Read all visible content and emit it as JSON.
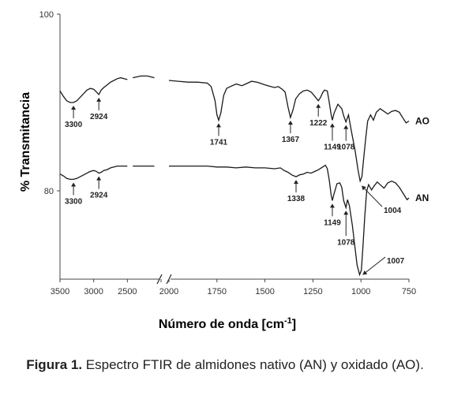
{
  "chart_data": {
    "type": "line",
    "caption_label": "Figura 1.",
    "caption_text": "Espectro FTIR de almidones nativo (AN) y oxidado (AO).",
    "xlabel": "Número de onda [cm",
    "xlabel_sup": "-1",
    "xlabel_end": "]",
    "ylabel": "% Transmitancia",
    "x_axis_break": true,
    "x_segments": [
      {
        "xlim": [
          3500,
          2000
        ]
      },
      {
        "xlim": [
          2000,
          750
        ]
      }
    ],
    "xticks": [
      "3500",
      "3000",
      "2500",
      "2000",
      "1750",
      "1500",
      "1250",
      "1000",
      "750"
    ],
    "yticks": [
      {
        "value": 100,
        "label": "100"
      },
      {
        "value": 80,
        "label": "80"
      }
    ],
    "ylim": [
      70,
      100
    ],
    "grid": false,
    "series": [
      {
        "name": "AO",
        "points": [
          [
            3500,
            91.3
          ],
          [
            3450,
            90.7
          ],
          [
            3400,
            90.2
          ],
          [
            3350,
            90.0
          ],
          [
            3300,
            90.0
          ],
          [
            3250,
            90.2
          ],
          [
            3200,
            90.6
          ],
          [
            3150,
            91.0
          ],
          [
            3100,
            91.4
          ],
          [
            3050,
            91.6
          ],
          [
            3000,
            91.5
          ],
          [
            2960,
            91.2
          ],
          [
            2924,
            90.9
          ],
          [
            2890,
            91.4
          ],
          [
            2850,
            91.7
          ],
          [
            2800,
            92.0
          ],
          [
            2750,
            92.3
          ],
          [
            2700,
            92.5
          ],
          [
            2650,
            92.7
          ],
          [
            2600,
            92.8
          ],
          [
            2550,
            92.7
          ],
          [
            2500,
            92.6
          ],
          [
            2420,
            92.8
          ],
          [
            2300,
            93.0
          ],
          [
            2200,
            93.0
          ],
          [
            2100,
            92.8
          ],
          [
            2000,
            92.5
          ],
          [
            1950,
            92.4
          ],
          [
            1900,
            92.3
          ],
          [
            1850,
            92.3
          ],
          [
            1800,
            92.2
          ],
          [
            1780,
            91.8
          ],
          [
            1760,
            90.2
          ],
          [
            1750,
            88.6
          ],
          [
            1741,
            88.0
          ],
          [
            1730,
            88.8
          ],
          [
            1715,
            90.8
          ],
          [
            1700,
            91.6
          ],
          [
            1680,
            91.8
          ],
          [
            1650,
            92.1
          ],
          [
            1620,
            91.9
          ],
          [
            1600,
            92.1
          ],
          [
            1570,
            92.4
          ],
          [
            1540,
            92.3
          ],
          [
            1500,
            92.0
          ],
          [
            1470,
            91.8
          ],
          [
            1450,
            91.7
          ],
          [
            1430,
            91.8
          ],
          [
            1410,
            91.5
          ],
          [
            1395,
            91.2
          ],
          [
            1380,
            89.5
          ],
          [
            1367,
            88.3
          ],
          [
            1355,
            89.1
          ],
          [
            1340,
            90.4
          ],
          [
            1320,
            91.0
          ],
          [
            1300,
            91.3
          ],
          [
            1280,
            91.4
          ],
          [
            1260,
            91.2
          ],
          [
            1240,
            90.7
          ],
          [
            1222,
            90.2
          ],
          [
            1210,
            90.6
          ],
          [
            1200,
            91.1
          ],
          [
            1190,
            91.4
          ],
          [
            1175,
            91.3
          ],
          [
            1165,
            90.0
          ],
          [
            1155,
            88.6
          ],
          [
            1149,
            88.0
          ],
          [
            1140,
            88.8
          ],
          [
            1120,
            89.8
          ],
          [
            1100,
            89.3
          ],
          [
            1090,
            88.5
          ],
          [
            1078,
            87.8
          ],
          [
            1065,
            88.6
          ],
          [
            1050,
            86.8
          ],
          [
            1030,
            84.5
          ],
          [
            1015,
            82.3
          ],
          [
            1004,
            81.1
          ],
          [
            995,
            81.6
          ],
          [
            985,
            83.8
          ],
          [
            975,
            86.0
          ],
          [
            965,
            87.9
          ],
          [
            950,
            88.6
          ],
          [
            935,
            88.0
          ],
          [
            920,
            88.9
          ],
          [
            900,
            89.3
          ],
          [
            880,
            89.0
          ],
          [
            860,
            88.7
          ],
          [
            840,
            89.0
          ],
          [
            820,
            89.1
          ],
          [
            800,
            88.9
          ],
          [
            780,
            88.2
          ],
          [
            765,
            87.7
          ],
          [
            750,
            87.9
          ]
        ]
      },
      {
        "name": "AN",
        "points": [
          [
            3500,
            81.9
          ],
          [
            3450,
            81.7
          ],
          [
            3400,
            81.4
          ],
          [
            3350,
            81.3
          ],
          [
            3300,
            81.3
          ],
          [
            3250,
            81.4
          ],
          [
            3200,
            81.6
          ],
          [
            3150,
            81.8
          ],
          [
            3100,
            82.0
          ],
          [
            3050,
            82.2
          ],
          [
            3000,
            82.3
          ],
          [
            2960,
            82.2
          ],
          [
            2924,
            82.0
          ],
          [
            2890,
            82.1
          ],
          [
            2850,
            82.3
          ],
          [
            2800,
            82.4
          ],
          [
            2750,
            82.6
          ],
          [
            2700,
            82.7
          ],
          [
            2650,
            82.8
          ],
          [
            2600,
            82.8
          ],
          [
            2550,
            82.8
          ],
          [
            2500,
            82.8
          ],
          [
            2420,
            82.8
          ],
          [
            2300,
            82.8
          ],
          [
            2200,
            82.8
          ],
          [
            2100,
            82.8
          ],
          [
            2000,
            82.8
          ],
          [
            1950,
            82.8
          ],
          [
            1900,
            82.8
          ],
          [
            1850,
            82.8
          ],
          [
            1800,
            82.8
          ],
          [
            1750,
            82.7
          ],
          [
            1700,
            82.7
          ],
          [
            1650,
            82.6
          ],
          [
            1600,
            82.7
          ],
          [
            1550,
            82.6
          ],
          [
            1500,
            82.6
          ],
          [
            1450,
            82.5
          ],
          [
            1420,
            82.6
          ],
          [
            1400,
            82.3
          ],
          [
            1380,
            82.1
          ],
          [
            1360,
            81.8
          ],
          [
            1338,
            81.6
          ],
          [
            1320,
            81.8
          ],
          [
            1300,
            81.9
          ],
          [
            1280,
            82.1
          ],
          [
            1260,
            82.0
          ],
          [
            1240,
            82.2
          ],
          [
            1220,
            82.4
          ],
          [
            1200,
            82.7
          ],
          [
            1185,
            82.9
          ],
          [
            1175,
            82.5
          ],
          [
            1165,
            81.2
          ],
          [
            1155,
            79.5
          ],
          [
            1149,
            78.9
          ],
          [
            1140,
            79.7
          ],
          [
            1125,
            80.8
          ],
          [
            1110,
            80.9
          ],
          [
            1100,
            80.4
          ],
          [
            1090,
            78.9
          ],
          [
            1078,
            78.1
          ],
          [
            1070,
            79.0
          ],
          [
            1060,
            78.3
          ],
          [
            1045,
            76.1
          ],
          [
            1030,
            73.4
          ],
          [
            1020,
            71.6
          ],
          [
            1007,
            70.5
          ],
          [
            998,
            71.0
          ],
          [
            990,
            73.5
          ],
          [
            980,
            77.2
          ],
          [
            970,
            80.0
          ],
          [
            960,
            80.7
          ],
          [
            945,
            80.1
          ],
          [
            930,
            80.6
          ],
          [
            915,
            81.0
          ],
          [
            900,
            80.7
          ],
          [
            880,
            80.3
          ],
          [
            860,
            80.9
          ],
          [
            840,
            81.1
          ],
          [
            820,
            80.9
          ],
          [
            800,
            80.4
          ],
          [
            780,
            79.7
          ],
          [
            760,
            79.0
          ],
          [
            750,
            79.2
          ]
        ]
      }
    ],
    "annotations": [
      {
        "series": "AO",
        "label": "3300",
        "x": 3300
      },
      {
        "series": "AO",
        "label": "2924",
        "x": 2924
      },
      {
        "series": "AO",
        "label": "1741",
        "x": 1741
      },
      {
        "series": "AO",
        "label": "1367",
        "x": 1367
      },
      {
        "series": "AO",
        "label": "1222",
        "x": 1222
      },
      {
        "series": "AO",
        "label": "1149",
        "x": 1149
      },
      {
        "series": "AO",
        "label": "1078",
        "x": 1078
      },
      {
        "series": "AO",
        "label": "1004",
        "x": 1004
      },
      {
        "series": "AN",
        "label": "3300",
        "x": 3300
      },
      {
        "series": "AN",
        "label": "2924",
        "x": 2924
      },
      {
        "series": "AN",
        "label": "1338",
        "x": 1338
      },
      {
        "series": "AN",
        "label": "1149",
        "x": 1149
      },
      {
        "series": "AN",
        "label": "1078",
        "x": 1078
      },
      {
        "series": "AN",
        "label": "1007",
        "x": 1007
      }
    ],
    "colors": {
      "line": "#1a1a1a",
      "axis": "#444444"
    }
  }
}
